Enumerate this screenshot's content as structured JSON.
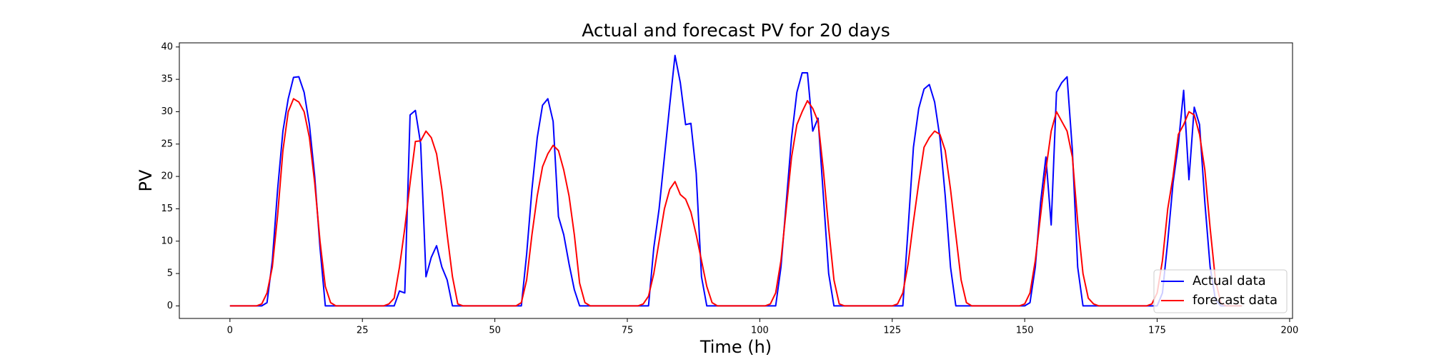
{
  "chart_data": {
    "type": "line",
    "title": "Actual and forecast PV for 20 days",
    "xlabel": "Time (h)",
    "ylabel": "PV",
    "xlim": [
      -9.55,
      200.55
    ],
    "ylim": [
      -1.94,
      40.64
    ],
    "xticks": [
      0,
      25,
      50,
      75,
      100,
      125,
      150,
      175,
      200
    ],
    "yticks": [
      0,
      5,
      10,
      15,
      20,
      25,
      30,
      35,
      40
    ],
    "grid": false,
    "legend": "lower right",
    "x": [
      0,
      1,
      2,
      3,
      4,
      5,
      6,
      7,
      8,
      9,
      10,
      11,
      12,
      13,
      14,
      15,
      16,
      17,
      18,
      19,
      20,
      21,
      22,
      23,
      24,
      25,
      26,
      27,
      28,
      29,
      30,
      31,
      32,
      33,
      34,
      35,
      36,
      37,
      38,
      39,
      40,
      41,
      42,
      43,
      44,
      45,
      46,
      47,
      48,
      49,
      50,
      51,
      52,
      53,
      54,
      55,
      56,
      57,
      58,
      59,
      60,
      61,
      62,
      63,
      64,
      65,
      66,
      67,
      68,
      69,
      70,
      71,
      72,
      73,
      74,
      75,
      76,
      77,
      78,
      79,
      80,
      81,
      82,
      83,
      84,
      85,
      86,
      87,
      88,
      89,
      90,
      91,
      92,
      93,
      94,
      95,
      96,
      97,
      98,
      99,
      100,
      101,
      102,
      103,
      104,
      105,
      106,
      107,
      108,
      109,
      110,
      111,
      112,
      113,
      114,
      115,
      116,
      117,
      118,
      119,
      120,
      121,
      122,
      123,
      124,
      125,
      126,
      127,
      128,
      129,
      130,
      131,
      132,
      133,
      134,
      135,
      136,
      137,
      138,
      139,
      140,
      141,
      142,
      143,
      144,
      145,
      146,
      147,
      148,
      149,
      150,
      151,
      152,
      153,
      154,
      155,
      156,
      157,
      158,
      159,
      160,
      161,
      162,
      163,
      164,
      165,
      166,
      167,
      168,
      169,
      170,
      171,
      172,
      173,
      174,
      175,
      176,
      177,
      178,
      179,
      180,
      181,
      182,
      183,
      184,
      185,
      186,
      187,
      188,
      189,
      190,
      191
    ],
    "series": [
      {
        "name": "Actual data",
        "color": "#0000ff",
        "values": [
          0,
          0,
          0,
          0,
          0,
          0,
          0,
          0.5,
          7,
          18,
          27,
          32,
          35.3,
          35.4,
          33,
          28,
          20,
          9,
          0,
          0,
          0,
          0,
          0,
          0,
          0,
          0,
          0,
          0,
          0,
          0,
          0,
          0,
          2.3,
          2,
          29.5,
          30.2,
          25,
          4.5,
          7.5,
          9.3,
          6,
          4,
          0,
          0,
          0,
          0,
          0,
          0,
          0,
          0,
          0,
          0,
          0,
          0,
          0,
          0,
          8,
          18,
          26,
          31,
          32,
          28.5,
          13.8,
          11,
          6.5,
          2.5,
          0,
          0,
          0,
          0,
          0,
          0,
          0,
          0,
          0,
          0,
          0,
          0,
          0,
          0,
          9,
          15,
          23,
          31,
          38.7,
          34.5,
          28,
          28.2,
          20.5,
          4.5,
          0,
          0,
          0,
          0,
          0,
          0,
          0,
          0,
          0,
          0,
          0,
          0,
          0,
          0,
          6,
          16,
          26,
          33,
          36,
          36,
          27,
          29,
          17,
          5,
          0,
          0,
          0,
          0,
          0,
          0,
          0,
          0,
          0,
          0,
          0,
          0,
          0,
          0,
          12,
          24.5,
          30.5,
          33.5,
          34.2,
          31.5,
          26,
          17,
          6,
          0,
          0,
          0,
          0,
          0,
          0,
          0,
          0,
          0,
          0,
          0,
          0,
          0,
          0,
          0.5,
          6,
          16,
          23,
          12.5,
          33,
          34.5,
          35.4,
          24,
          6,
          0,
          0,
          0,
          0,
          0,
          0,
          0,
          0,
          0,
          0,
          0,
          0,
          0,
          0,
          0,
          2,
          10,
          19,
          25,
          33.3,
          19.5,
          30.7,
          28,
          16,
          6,
          1,
          0,
          0,
          0,
          0,
          0
        ]
      },
      {
        "name": "forecast data",
        "color": "#ff0000",
        "values": [
          0,
          0,
          0,
          0,
          0,
          0,
          0.3,
          2,
          6,
          14,
          24,
          30,
          32,
          31.5,
          30,
          26,
          19,
          10,
          3,
          0.5,
          0,
          0,
          0,
          0,
          0,
          0,
          0,
          0,
          0,
          0,
          0.3,
          1.2,
          6,
          12,
          19,
          25.4,
          25.5,
          27,
          26,
          23.5,
          18,
          11,
          4.5,
          0.3,
          0,
          0,
          0,
          0,
          0,
          0,
          0,
          0,
          0,
          0,
          0,
          0.5,
          4,
          11,
          17,
          21.5,
          23.5,
          24.8,
          24,
          21,
          17,
          11,
          3.5,
          0.5,
          0,
          0,
          0,
          0,
          0,
          0,
          0,
          0,
          0,
          0,
          0.3,
          1.5,
          5,
          10,
          15,
          18,
          19.2,
          17.2,
          16.5,
          14.5,
          11,
          7,
          3,
          0.5,
          0,
          0,
          0,
          0,
          0,
          0,
          0,
          0,
          0,
          0,
          0.3,
          2,
          7,
          15,
          23,
          28,
          30,
          31.7,
          30.5,
          28.5,
          21,
          12,
          4,
          0.3,
          0,
          0,
          0,
          0,
          0,
          0,
          0,
          0,
          0,
          0,
          0.3,
          2,
          6.5,
          13,
          19,
          24.5,
          26,
          27,
          26.5,
          24,
          18,
          11,
          4,
          0.5,
          0,
          0,
          0,
          0,
          0,
          0,
          0,
          0,
          0,
          0,
          0.3,
          2,
          7,
          14,
          21,
          27,
          30,
          28.5,
          27,
          23,
          13,
          5,
          1.2,
          0.3,
          0,
          0,
          0,
          0,
          0,
          0,
          0,
          0,
          0,
          0,
          0.3,
          2,
          7,
          15,
          20,
          26.5,
          28,
          30,
          29.5,
          26.5,
          21,
          12,
          4,
          0.5,
          0,
          0,
          0,
          0
        ]
      }
    ]
  }
}
